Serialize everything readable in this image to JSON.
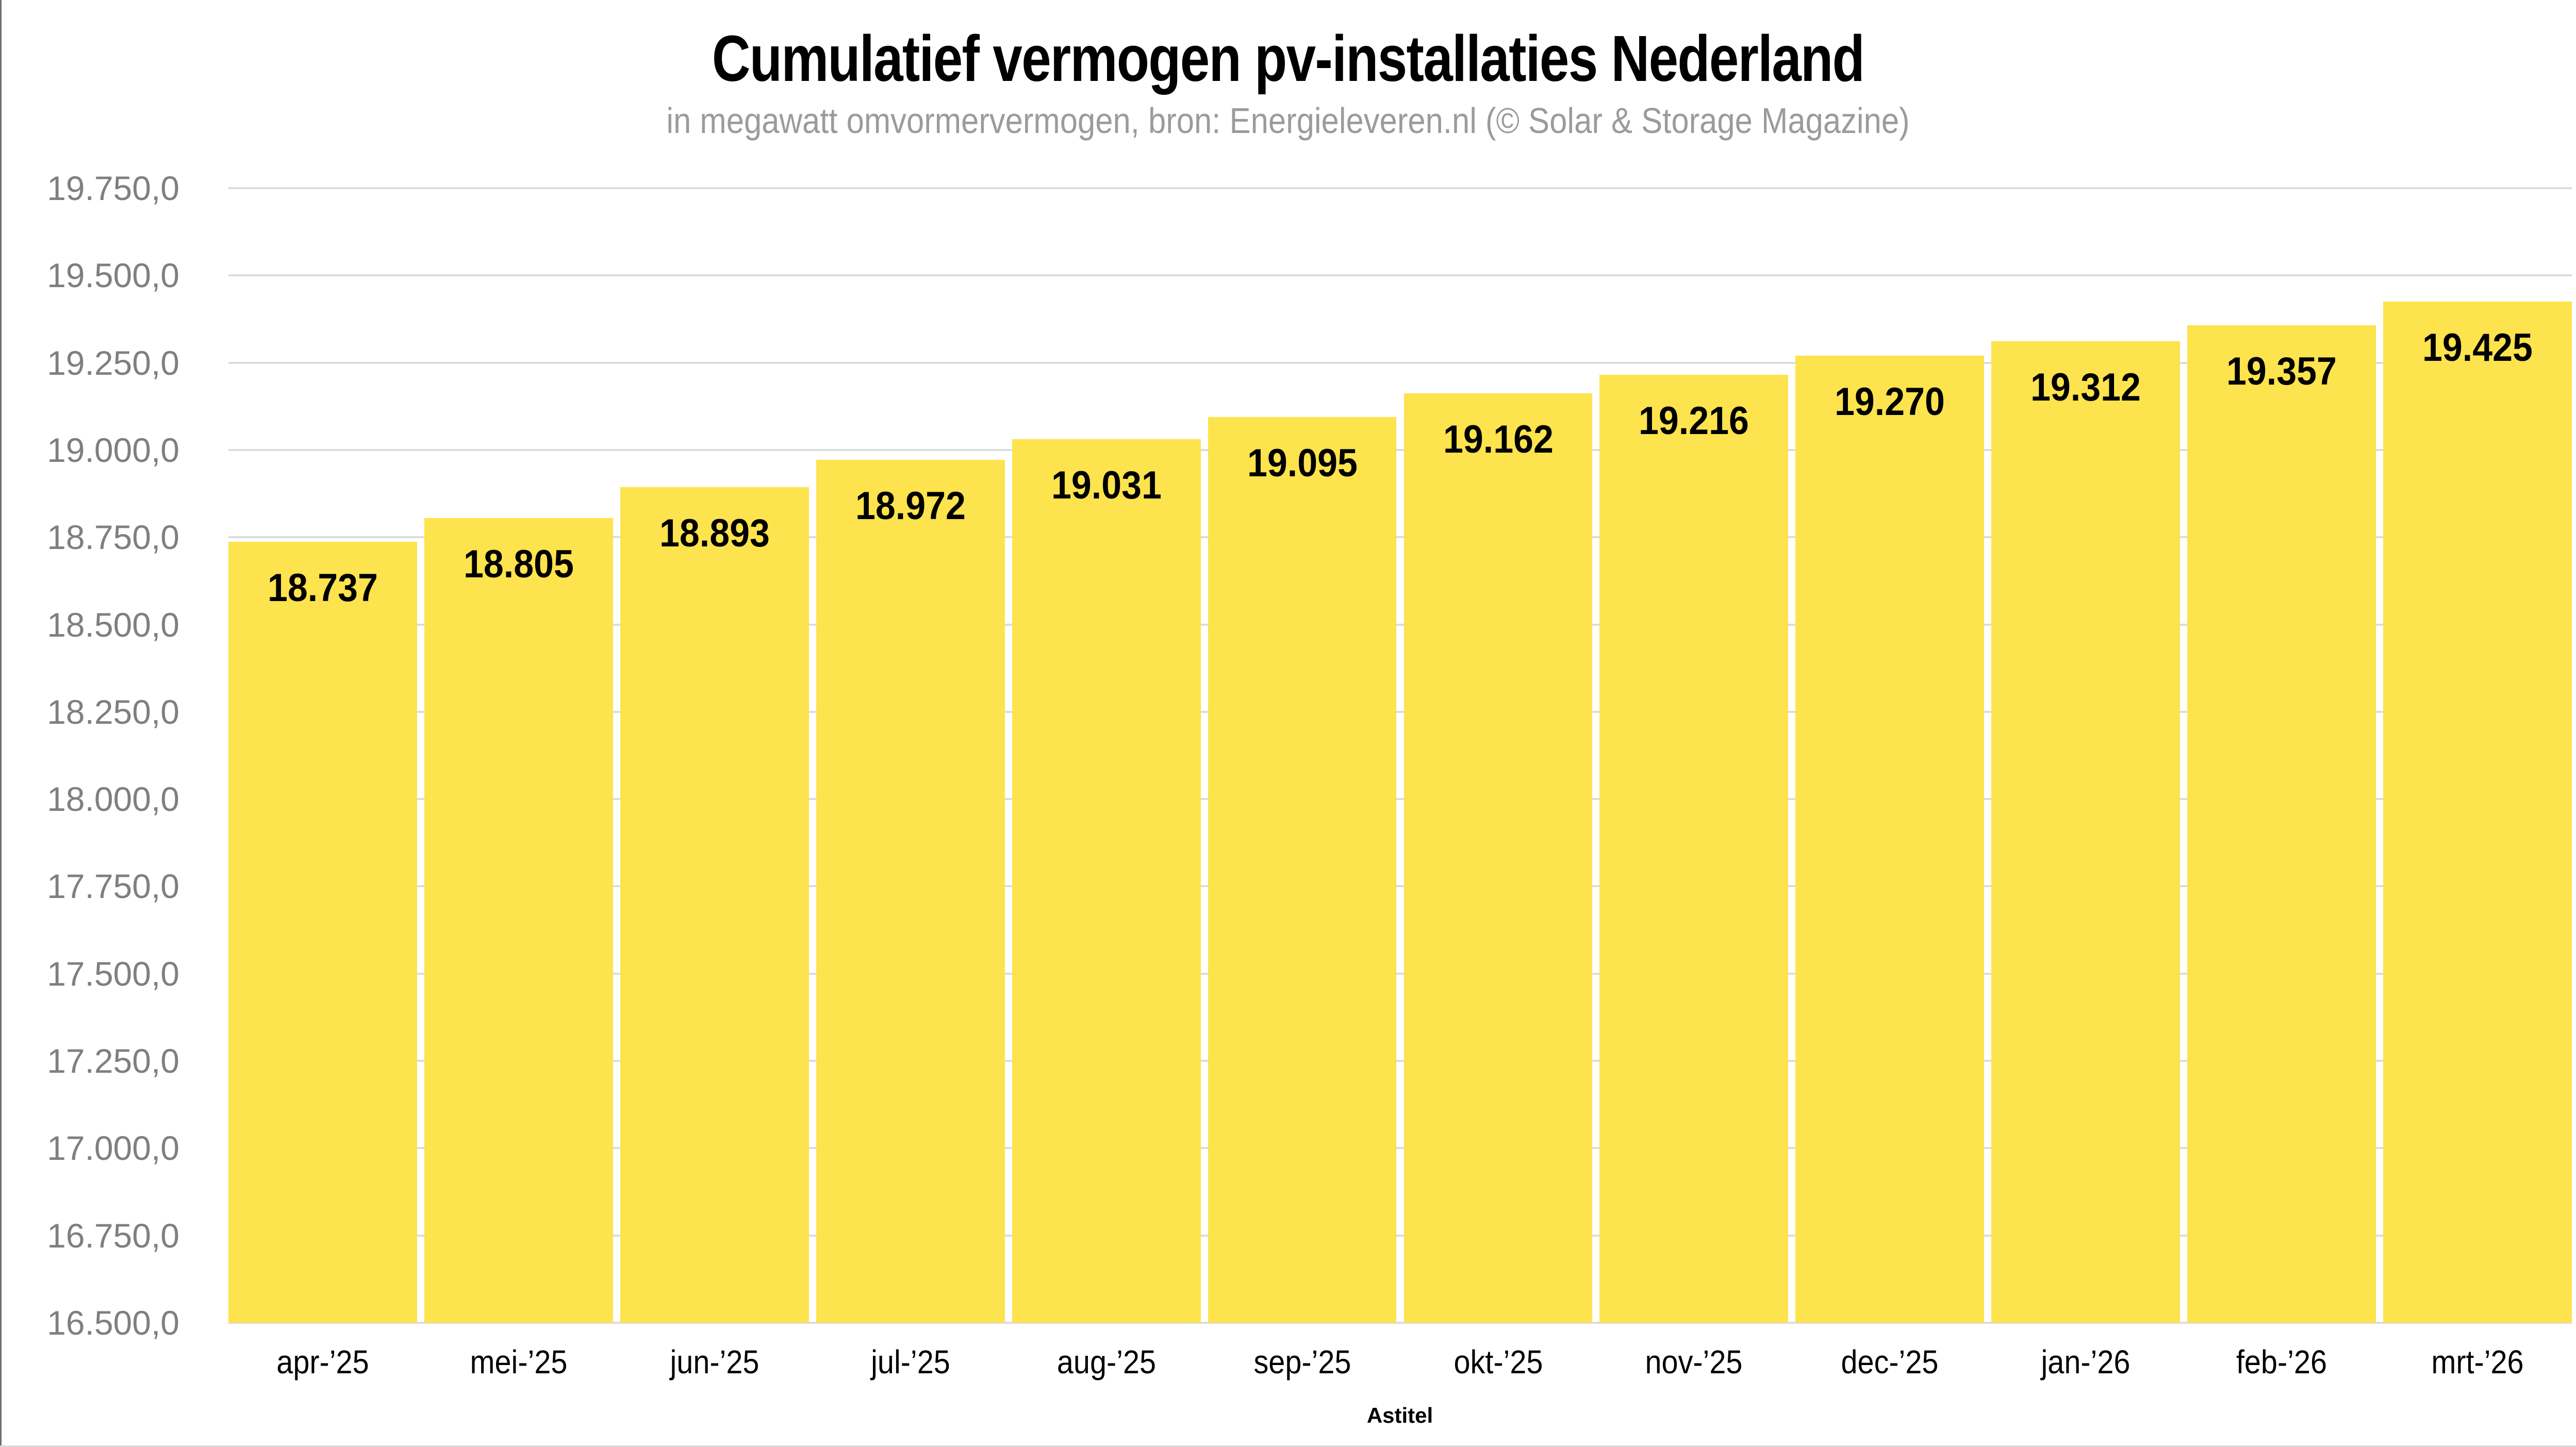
{
  "chart_data": {
    "type": "bar",
    "title": "Cumulatief vermogen pv-installaties Nederland",
    "subtitle": "in megawatt omvormervermogen, bron: Energieleveren.nl (© Solar & Storage Magazine)",
    "categories": [
      "apr-’25",
      "mei-’25",
      "jun-’25",
      "jul-’25",
      "aug-’25",
      "sep-’25",
      "okt-’25",
      "nov-’25",
      "dec-’25",
      "jan-’26",
      "feb-’26",
      "mrt-’26"
    ],
    "values": [
      18737,
      18805,
      18893,
      18972,
      19031,
      19095,
      19162,
      19216,
      19270,
      19312,
      19357,
      19425
    ],
    "value_labels": [
      "18.737",
      "18.805",
      "18.893",
      "18.972",
      "19.031",
      "19.095",
      "19.162",
      "19.216",
      "19.270",
      "19.312",
      "19.357",
      "19.425"
    ],
    "xlabel": "Astitel",
    "ylabel": "",
    "ylim": [
      16500,
      19750
    ],
    "ytick_step": 250,
    "ytick_labels": [
      "19.750,0",
      "19.500,0",
      "19.250,0",
      "19.000,0",
      "18.750,0",
      "18.500,0",
      "18.250,0",
      "18.000,0",
      "17.750,0",
      "17.500,0",
      "17.250,0",
      "17.000,0",
      "16.750,0",
      "16.500,0"
    ],
    "grid": true,
    "legend": "none",
    "colors": {
      "background": "#FFFFFF",
      "bar": "#FDE34D",
      "gridline": "#DCDCDC",
      "title_text": "#000000",
      "subtitle_text": "#9B9B9B",
      "ytick_text": "#7F7F7F",
      "xtick_text": "#000000",
      "bar_label_text": "#000000",
      "axis_title_text": "#000000",
      "frame_left": "#6E6E6E",
      "frame_bottom": "#DADADA"
    }
  }
}
